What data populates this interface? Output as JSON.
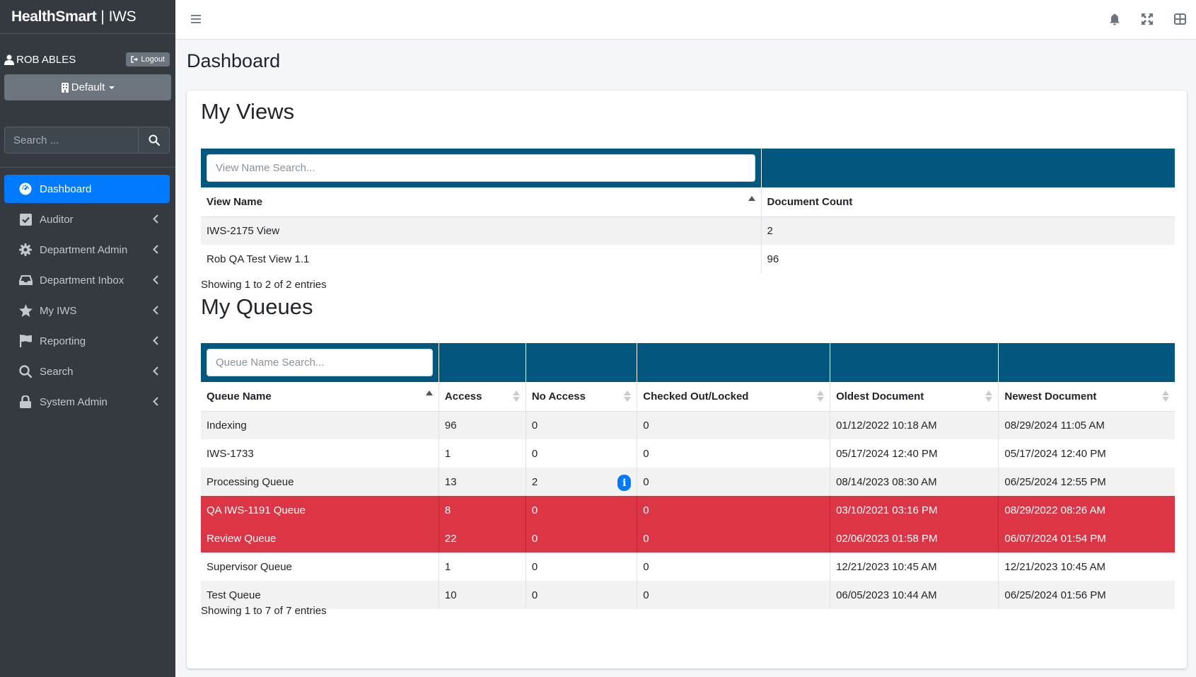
{
  "brand": {
    "name": "HealthSmart",
    "product": "IWS"
  },
  "user": {
    "name": "ROB ABLES",
    "logout_label": "Logout"
  },
  "department_selector": {
    "label": "Default"
  },
  "sidebar_search": {
    "placeholder": "Search ..."
  },
  "nav": [
    {
      "label": "Dashboard",
      "icon": "dashboard-icon",
      "active": true
    },
    {
      "label": "Auditor",
      "icon": "check-square-icon"
    },
    {
      "label": "Department Admin",
      "icon": "gear-icon"
    },
    {
      "label": "Department Inbox",
      "icon": "inbox-icon"
    },
    {
      "label": "My IWS",
      "icon": "star-icon"
    },
    {
      "label": "Reporting",
      "icon": "flag-icon"
    },
    {
      "label": "Search",
      "icon": "search-icon"
    },
    {
      "label": "System Admin",
      "icon": "lock-icon"
    }
  ],
  "page_title": "Dashboard",
  "my_views": {
    "title": "My Views",
    "search_placeholder": "View Name Search...",
    "columns": [
      "View Name",
      "Document Count"
    ],
    "rows": [
      [
        "IWS-2175 View",
        "2"
      ],
      [
        "Rob QA Test View 1.1",
        "96"
      ]
    ],
    "entries_text": "Showing 1 to 2 of 2 entries"
  },
  "my_queues": {
    "title": "My Queues",
    "search_placeholder": "Queue Name Search...",
    "columns": [
      "Queue Name",
      "Access",
      "No Access",
      "Checked Out/Locked",
      "Oldest Document",
      "Newest Document"
    ],
    "rows": [
      [
        "Indexing",
        "96",
        "0",
        "0",
        "01/12/2022 10:18 AM",
        "08/29/2024 11:05 AM"
      ],
      [
        "IWS-1733",
        "1",
        "0",
        "0",
        "05/17/2024 12:40 PM",
        "05/17/2024 12:40 PM"
      ],
      [
        "Processing Queue",
        "13",
        "2",
        "0",
        "08/14/2023 08:30 AM",
        "06/25/2024 12:55 PM"
      ],
      [
        "QA IWS-1191 Queue",
        "8",
        "0",
        "0",
        "03/10/2021 03:16 PM",
        "08/29/2022 08:26 AM"
      ],
      [
        "Review Queue",
        "22",
        "0",
        "0",
        "02/06/2023 01:58 PM",
        "06/07/2024 01:54 PM"
      ],
      [
        "Supervisor Queue",
        "1",
        "0",
        "0",
        "12/21/2023 10:45 AM",
        "12/21/2023 10:45 AM"
      ],
      [
        "Test Queue",
        "10",
        "0",
        "0",
        "06/05/2023 10:44 AM",
        "06/25/2024 01:56 PM"
      ]
    ],
    "highlighted_rows": [
      3,
      4
    ],
    "info_badge": {
      "row": 2,
      "symbol": "i"
    },
    "entries_text": "Showing 1 to 7 of 7 entries"
  },
  "colors": {
    "sidebar": "#343a40",
    "active": "#007bff",
    "table_header": "#02577f",
    "danger": "#dc3545"
  }
}
